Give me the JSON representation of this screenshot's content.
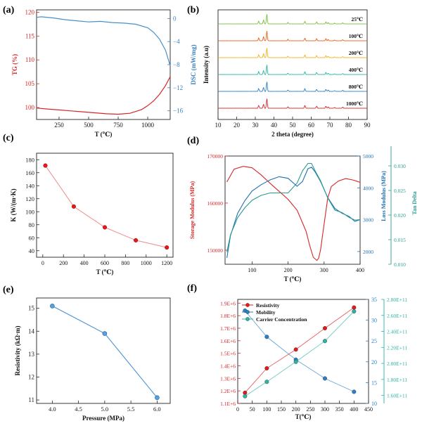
{
  "chart_data": [
    {
      "id": "a",
      "panel_label": "(a)",
      "type": "line",
      "xlabel": "T (℃)",
      "ylabel": "TG (%)",
      "y2label": "DSC (mW/mg)",
      "xlim": [
        60,
        1190
      ],
      "ylim": [
        97.5,
        120.5
      ],
      "y2lim": [
        -17.5,
        1.5
      ],
      "xticks": [
        250,
        500,
        750,
        1000
      ],
      "xtick_labels": [
        "250",
        "500",
        "750",
        "1000"
      ],
      "yticks": [
        100,
        105,
        110,
        115,
        120
      ],
      "ytick_labels": [
        "100",
        "105",
        "110",
        "115",
        "120"
      ],
      "y2ticks": [
        0,
        -4,
        -8,
        -12,
        -16
      ],
      "y2tick_labels": [
        "0",
        "−4",
        "−8",
        "−12",
        "−16"
      ],
      "series": [
        {
          "name": "TG",
          "axis": "left",
          "color": "#d62728",
          "x": [
            60,
            150,
            250,
            350,
            450,
            550,
            650,
            750,
            850,
            950,
            1000,
            1050,
            1100,
            1150,
            1190
          ],
          "y": [
            99.9,
            99.7,
            99.5,
            99.3,
            99.1,
            98.9,
            98.7,
            98.6,
            98.8,
            99.6,
            100.4,
            101.4,
            102.8,
            104.6,
            106.5
          ]
        },
        {
          "name": "DSC",
          "axis": "right",
          "color": "#4a90c8",
          "x": [
            60,
            100,
            200,
            300,
            400,
            500,
            600,
            700,
            800,
            900,
            1000,
            1050,
            1100,
            1150,
            1190
          ],
          "y": [
            0.2,
            0.3,
            0.1,
            -0.2,
            -0.4,
            -0.6,
            -0.5,
            -0.7,
            -0.8,
            -1.0,
            -1.6,
            -2.4,
            -3.6,
            -5.5,
            -8.2
          ]
        }
      ]
    },
    {
      "id": "b",
      "panel_label": "(b)",
      "type": "line",
      "xlabel": "2 theta (degree)",
      "ylabel": "Intensity (a.u)",
      "xlim": [
        10,
        90
      ],
      "xticks": [
        10,
        20,
        30,
        40,
        50,
        60,
        70,
        80,
        90
      ],
      "xtick_labels": [
        "10",
        "20",
        "30",
        "40",
        "50",
        "60",
        "70",
        "80",
        "90"
      ],
      "series": [
        {
          "name": "25℃",
          "label": "25℃",
          "color": "#7cbf3c"
        },
        {
          "name": "100℃",
          "label": "100℃",
          "color": "#e6601a"
        },
        {
          "name": "200℃",
          "label": "200℃",
          "color": "#f2b21c"
        },
        {
          "name": "400℃",
          "label": "400℃",
          "color": "#2ab3a6"
        },
        {
          "name": "800℃",
          "label": "800℃",
          "color": "#2a7fc8"
        },
        {
          "name": "1000℃",
          "label": "1000℃",
          "color": "#d62728"
        }
      ]
    },
    {
      "id": "c",
      "panel_label": "(c)",
      "type": "line",
      "xlabel": "T (℃)",
      "ylabel": "K (W/(m·K)",
      "xlim": [
        -60,
        1260
      ],
      "ylim": [
        30,
        190
      ],
      "xticks": [
        0,
        200,
        400,
        600,
        800,
        1000,
        1200
      ],
      "xtick_labels": [
        "0",
        "200",
        "400",
        "600",
        "800",
        "1000",
        "1200"
      ],
      "yticks": [
        40,
        60,
        80,
        100,
        120,
        140,
        160,
        180
      ],
      "ytick_labels": [
        "40",
        "60",
        "80",
        "100",
        "120",
        "140",
        "160",
        "180"
      ],
      "series": [
        {
          "name": "K",
          "color": "#e31a1c",
          "x": [
            25,
            300,
            600,
            900,
            1200
          ],
          "y": [
            171,
            108,
            76,
            56,
            45
          ]
        }
      ]
    },
    {
      "id": "d",
      "panel_label": "(d)",
      "type": "line",
      "xlabel": "T (℃)",
      "ylabel": "Storage Modulus (MPa)",
      "y2label": "Loss Modulus (MPa)",
      "y3label": "Tan Delta",
      "xlim": [
        25,
        400
      ],
      "ylim": [
        147000,
        170000
      ],
      "y2lim": [
        1600,
        5000
      ],
      "y3lim": [
        0.01,
        0.032
      ],
      "xticks": [
        100,
        200,
        300,
        400
      ],
      "xtick_labels": [
        "100",
        "200",
        "300",
        "400"
      ],
      "yticks": [
        150000,
        160000,
        170000
      ],
      "ytick_labels": [
        "150000",
        "160000",
        "170000"
      ],
      "y2ticks": [
        2000,
        3000,
        4000,
        5000
      ],
      "y2tick_labels": [
        "2000",
        "3000",
        "4000",
        "5000"
      ],
      "y3ticks": [
        0.01,
        0.015,
        0.02,
        0.025,
        0.03
      ],
      "y3tick_labels": [
        "0.010",
        "0.015",
        "0.020",
        "0.025",
        "0.030"
      ],
      "series": [
        {
          "name": "Storage Modulus",
          "axis": "left",
          "color": "#d62728",
          "x": [
            30,
            50,
            75,
            100,
            125,
            150,
            175,
            200,
            225,
            250,
            260,
            270,
            280,
            285,
            290,
            300,
            310,
            320,
            340,
            360,
            380,
            400
          ],
          "y": [
            164500,
            167200,
            167800,
            167500,
            166000,
            164200,
            162500,
            160800,
            158500,
            154000,
            151000,
            148500,
            147800,
            148300,
            150000,
            155500,
            161000,
            163500,
            164700,
            165200,
            164900,
            164400
          ]
        },
        {
          "name": "Loss Modulus",
          "axis": "right",
          "color": "#1f6fb2",
          "x": [
            30,
            40,
            60,
            80,
            100,
            125,
            150,
            175,
            200,
            225,
            240,
            255,
            265,
            275,
            290,
            310,
            330,
            350,
            370,
            385,
            400
          ],
          "y": [
            1800,
            2500,
            3200,
            3600,
            3900,
            4100,
            4250,
            4350,
            4300,
            4050,
            4200,
            4600,
            4650,
            4500,
            4200,
            3700,
            3350,
            3200,
            3100,
            2950,
            3000
          ]
        },
        {
          "name": "Tan Delta",
          "axis": "right2",
          "color": "#2a9d8f",
          "x": [
            30,
            40,
            60,
            80,
            100,
            125,
            150,
            175,
            200,
            225,
            240,
            255,
            265,
            275,
            290,
            310,
            330,
            350,
            370,
            385,
            400
          ],
          "y": [
            0.0125,
            0.016,
            0.0195,
            0.0215,
            0.023,
            0.024,
            0.0245,
            0.0245,
            0.0245,
            0.0265,
            0.029,
            0.0305,
            0.0305,
            0.029,
            0.027,
            0.0235,
            0.021,
            0.0205,
            0.0195,
            0.019,
            0.019
          ]
        }
      ]
    },
    {
      "id": "e",
      "panel_label": "(e)",
      "type": "line",
      "xlabel": "Pressure (MPa)",
      "ylabel": "Resistivity (kΩ·m)",
      "xlim": [
        3.7,
        6.25
      ],
      "ylim": [
        10.85,
        15.45
      ],
      "xticks": [
        4.0,
        4.5,
        5.0,
        5.5,
        6.0
      ],
      "xtick_labels": [
        "4.0",
        "4.5",
        "5.0",
        "5.5",
        "6.0"
      ],
      "yticks": [
        11,
        12,
        13,
        14,
        15
      ],
      "ytick_labels": [
        "11",
        "12",
        "13",
        "14",
        "15"
      ],
      "series": [
        {
          "name": "Resistivity",
          "color": "#4a90d9",
          "x": [
            4.0,
            5.0,
            6.0
          ],
          "y": [
            15.1,
            13.9,
            11.1
          ]
        }
      ]
    },
    {
      "id": "f",
      "panel_label": "(f)",
      "type": "line",
      "xlabel": "T(℃)",
      "xlim": [
        0,
        450
      ],
      "ylim": [
        1100000,
        1930000
      ],
      "y2lim": [
        10,
        35
      ],
      "y3lim": [
        150000000000,
        280000000000
      ],
      "xticks": [
        0,
        50,
        100,
        150,
        200,
        250,
        300,
        350,
        400,
        450
      ],
      "xtick_labels": [
        "0",
        "50",
        "100",
        "150",
        "200",
        "250",
        "300",
        "350",
        "400",
        "450"
      ],
      "yticks": [
        1100000,
        1200000,
        1300000,
        1400000,
        1500000,
        1600000,
        1700000,
        1800000,
        1900000
      ],
      "ytick_labels": [
        "1.1E+6",
        "1.2E+6",
        "1.3E+6",
        "1.4E+6",
        "1.5E+6",
        "1.6E+6",
        "1.7E+6",
        "1.8E+6",
        "1.9E+6"
      ],
      "y2ticks": [
        10,
        15,
        20,
        25,
        30,
        35
      ],
      "y2tick_labels": [
        "10",
        "15",
        "20",
        "25",
        "30",
        "35"
      ],
      "y3ticks": [
        160000000000,
        180000000000,
        200000000000,
        220000000000,
        240000000000,
        260000000000,
        280000000000
      ],
      "y3tick_labels": [
        "1.60E+11",
        "1.80E+11",
        "2.00E+11",
        "2.20E+11",
        "2.40E+11",
        "2.60E+11",
        "2.80E+11"
      ],
      "legend_position": "top-left",
      "series": [
        {
          "name": "Resistivity",
          "axis": "left",
          "color": "#e31a1c",
          "x": [
            25,
            100,
            200,
            300,
            400
          ],
          "y": [
            1185000,
            1380000,
            1530000,
            1700000,
            1865000
          ]
        },
        {
          "name": "Mobility",
          "axis": "right",
          "color": "#2a7fc8",
          "x": [
            25,
            100,
            200,
            300,
            400
          ],
          "y": [
            32.3,
            26.0,
            20.5,
            16.0,
            12.8
          ]
        },
        {
          "name": "Carrier Concentration",
          "axis": "right2",
          "color": "#2ab3a6",
          "x": [
            25,
            100,
            200,
            300,
            400
          ],
          "y": [
            159000000000,
            177000000000,
            202000000000,
            228000000000,
            265000000000
          ]
        }
      ]
    }
  ]
}
